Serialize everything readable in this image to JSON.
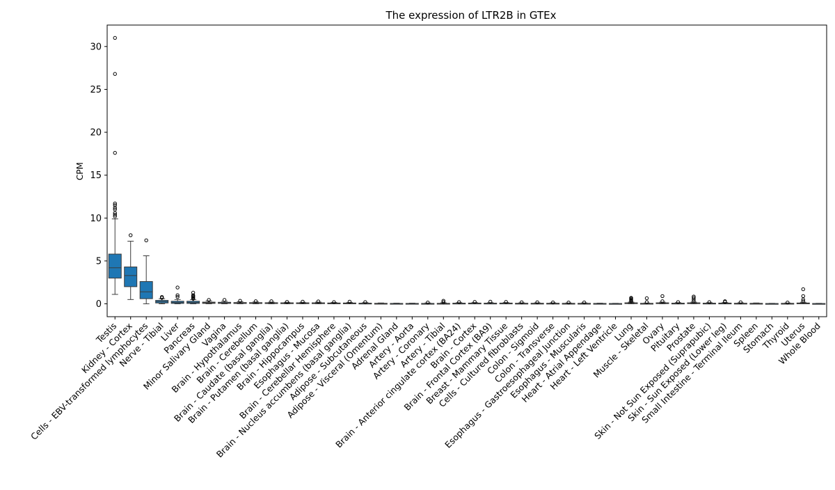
{
  "chart_data": {
    "type": "box",
    "title": "The expression of LTR2B in GTEx",
    "xlabel": "",
    "ylabel": "CPM",
    "ylim": [
      -1.5,
      32.5
    ],
    "yticks": [
      0,
      5,
      10,
      15,
      20,
      25,
      30
    ],
    "grid": false,
    "box_color": "#1f77b4",
    "categories": [
      "Testis",
      "Kidney - Cortex",
      "Cells - EBV-transformed lymphocytes",
      "Nerve - Tibial",
      "Liver",
      "Pancreas",
      "Minor Salivary Gland",
      "Vagina",
      "Brain - Hypothalamus",
      "Brain - Cerebellum",
      "Brain - Caudate (basal ganglia)",
      "Brain - Putamen (basal ganglia)",
      "Brain - Hippocampus",
      "Esophagus - Mucosa",
      "Brain - Cerebellar Hemisphere",
      "Brain - Nucleus accumbens (basal ganglia)",
      "Adipose - Subcutaneous",
      "Adipose - Visceral (Omentum)",
      "Adrenal Gland",
      "Artery - Aorta",
      "Artery - Coronary",
      "Artery - Tibial",
      "Brain - Anterior cingulate cortex (BA24)",
      "Brain - Cortex",
      "Brain - Frontal Cortex (BA9)",
      "Breast - Mammary Tissue",
      "Cells - Cultured fibroblasts",
      "Colon - Sigmoid",
      "Colon - Transverse",
      "Esophagus - Gastroesophageal Junction",
      "Esophagus - Muscularis",
      "Heart - Atrial Appendage",
      "Heart - Left Ventricle",
      "Lung",
      "Muscle - Skeletal",
      "Ovary",
      "Pituitary",
      "Prostate",
      "Skin - Not Sun Exposed (Suprapubic)",
      "Skin - Sun Exposed (Lower leg)",
      "Small Intestine - Terminal Ileum",
      "Spleen",
      "Stomach",
      "Thyroid",
      "Uterus",
      "Whole Blood"
    ],
    "boxes": [
      {
        "q1": 3.0,
        "median": 4.2,
        "q3": 5.8,
        "whisker_low": 1.1,
        "whisker_high": 9.9,
        "outliers": [
          10.2,
          10.4,
          10.6,
          11.0,
          11.2,
          11.5,
          11.7,
          17.6,
          26.8,
          31.0
        ]
      },
      {
        "q1": 2.0,
        "median": 3.3,
        "q3": 4.3,
        "whisker_low": 0.5,
        "whisker_high": 7.3,
        "outliers": [
          8.0
        ]
      },
      {
        "q1": 0.6,
        "median": 1.4,
        "q3": 2.6,
        "whisker_low": 0.0,
        "whisker_high": 5.6,
        "outliers": [
          7.4
        ]
      },
      {
        "q1": 0.1,
        "median": 0.25,
        "q3": 0.4,
        "whisker_low": 0.0,
        "whisker_high": 0.6,
        "outliers": [
          0.7,
          0.8
        ]
      },
      {
        "q1": 0.05,
        "median": 0.15,
        "q3": 0.3,
        "whisker_low": 0.0,
        "whisker_high": 0.5,
        "outliers": [
          0.8,
          1.0,
          1.9
        ]
      },
      {
        "q1": 0.05,
        "median": 0.15,
        "q3": 0.3,
        "whisker_low": 0.0,
        "whisker_high": 0.5,
        "outliers": [
          0.6,
          0.7,
          0.8,
          0.9,
          1.0,
          1.3
        ]
      },
      {
        "q1": 0.05,
        "median": 0.12,
        "q3": 0.2,
        "whisker_low": 0.0,
        "whisker_high": 0.35,
        "outliers": [
          0.45
        ]
      },
      {
        "q1": 0.05,
        "median": 0.1,
        "q3": 0.18,
        "whisker_low": 0.0,
        "whisker_high": 0.3,
        "outliers": [
          0.45
        ]
      },
      {
        "q1": 0.04,
        "median": 0.1,
        "q3": 0.15,
        "whisker_low": 0.0,
        "whisker_high": 0.25,
        "outliers": [
          0.35
        ]
      },
      {
        "q1": 0.04,
        "median": 0.08,
        "q3": 0.14,
        "whisker_low": 0.0,
        "whisker_high": 0.22,
        "outliers": [
          0.3
        ]
      },
      {
        "q1": 0.04,
        "median": 0.08,
        "q3": 0.13,
        "whisker_low": 0.0,
        "whisker_high": 0.2,
        "outliers": [
          0.3
        ]
      },
      {
        "q1": 0.03,
        "median": 0.08,
        "q3": 0.12,
        "whisker_low": 0.0,
        "whisker_high": 0.18,
        "outliers": [
          0.22
        ]
      },
      {
        "q1": 0.03,
        "median": 0.07,
        "q3": 0.12,
        "whisker_low": 0.0,
        "whisker_high": 0.18,
        "outliers": [
          0.25
        ]
      },
      {
        "q1": 0.03,
        "median": 0.07,
        "q3": 0.12,
        "whisker_low": 0.0,
        "whisker_high": 0.2,
        "outliers": [
          0.28
        ]
      },
      {
        "q1": 0.03,
        "median": 0.06,
        "q3": 0.1,
        "whisker_low": 0.0,
        "whisker_high": 0.16,
        "outliers": [
          0.2
        ]
      },
      {
        "q1": 0.03,
        "median": 0.06,
        "q3": 0.1,
        "whisker_low": 0.0,
        "whisker_high": 0.16,
        "outliers": [
          0.25
        ]
      },
      {
        "q1": 0.02,
        "median": 0.05,
        "q3": 0.08,
        "whisker_low": 0.0,
        "whisker_high": 0.14,
        "outliers": [
          0.2
        ]
      },
      {
        "q1": 0.01,
        "median": 0.03,
        "q3": 0.06,
        "whisker_low": 0.0,
        "whisker_high": 0.1,
        "outliers": []
      },
      {
        "q1": 0.01,
        "median": 0.03,
        "q3": 0.05,
        "whisker_low": 0.0,
        "whisker_high": 0.08,
        "outliers": []
      },
      {
        "q1": 0.01,
        "median": 0.03,
        "q3": 0.05,
        "whisker_low": 0.0,
        "whisker_high": 0.08,
        "outliers": []
      },
      {
        "q1": 0.01,
        "median": 0.03,
        "q3": 0.05,
        "whisker_low": 0.0,
        "whisker_high": 0.1,
        "outliers": [
          0.15
        ]
      },
      {
        "q1": 0.01,
        "median": 0.03,
        "q3": 0.06,
        "whisker_low": 0.0,
        "whisker_high": 0.12,
        "outliers": [
          0.2,
          0.35
        ]
      },
      {
        "q1": 0.02,
        "median": 0.05,
        "q3": 0.08,
        "whisker_low": 0.0,
        "whisker_high": 0.14,
        "outliers": [
          0.2
        ]
      },
      {
        "q1": 0.02,
        "median": 0.05,
        "q3": 0.09,
        "whisker_low": 0.0,
        "whisker_high": 0.15,
        "outliers": [
          0.22
        ]
      },
      {
        "q1": 0.02,
        "median": 0.05,
        "q3": 0.08,
        "whisker_low": 0.0,
        "whisker_high": 0.14,
        "outliers": [
          0.25
        ]
      },
      {
        "q1": 0.02,
        "median": 0.05,
        "q3": 0.09,
        "whisker_low": 0.0,
        "whisker_high": 0.15,
        "outliers": [
          0.22
        ]
      },
      {
        "q1": 0.01,
        "median": 0.04,
        "q3": 0.07,
        "whisker_low": 0.0,
        "whisker_high": 0.12,
        "outliers": [
          0.18
        ]
      },
      {
        "q1": 0.01,
        "median": 0.04,
        "q3": 0.07,
        "whisker_low": 0.0,
        "whisker_high": 0.12,
        "outliers": [
          0.18
        ]
      },
      {
        "q1": 0.01,
        "median": 0.04,
        "q3": 0.07,
        "whisker_low": 0.0,
        "whisker_high": 0.12,
        "outliers": [
          0.16
        ]
      },
      {
        "q1": 0.01,
        "median": 0.03,
        "q3": 0.06,
        "whisker_low": 0.0,
        "whisker_high": 0.1,
        "outliers": [
          0.15
        ]
      },
      {
        "q1": 0.01,
        "median": 0.03,
        "q3": 0.06,
        "whisker_low": 0.0,
        "whisker_high": 0.11,
        "outliers": [
          0.16
        ]
      },
      {
        "q1": 0.01,
        "median": 0.03,
        "q3": 0.05,
        "whisker_low": 0.0,
        "whisker_high": 0.08,
        "outliers": []
      },
      {
        "q1": 0.01,
        "median": 0.02,
        "q3": 0.04,
        "whisker_low": 0.0,
        "whisker_high": 0.06,
        "outliers": []
      },
      {
        "q1": 0.03,
        "median": 0.07,
        "q3": 0.12,
        "whisker_low": 0.0,
        "whisker_high": 0.2,
        "outliers": [
          0.3,
          0.4,
          0.5,
          0.6,
          0.7
        ]
      },
      {
        "q1": 0.01,
        "median": 0.03,
        "q3": 0.06,
        "whisker_low": 0.0,
        "whisker_high": 0.1,
        "outliers": [
          0.2,
          0.65
        ]
      },
      {
        "q1": 0.03,
        "median": 0.07,
        "q3": 0.12,
        "whisker_low": 0.0,
        "whisker_high": 0.2,
        "outliers": [
          0.3,
          0.9
        ]
      },
      {
        "q1": 0.02,
        "median": 0.05,
        "q3": 0.08,
        "whisker_low": 0.0,
        "whisker_high": 0.14,
        "outliers": [
          0.2
        ]
      },
      {
        "q1": 0.03,
        "median": 0.07,
        "q3": 0.12,
        "whisker_low": 0.0,
        "whisker_high": 0.2,
        "outliers": [
          0.3,
          0.5,
          0.7,
          0.85
        ]
      },
      {
        "q1": 0.02,
        "median": 0.05,
        "q3": 0.08,
        "whisker_low": 0.0,
        "whisker_high": 0.14,
        "outliers": [
          0.2
        ]
      },
      {
        "q1": 0.02,
        "median": 0.05,
        "q3": 0.09,
        "whisker_low": 0.0,
        "whisker_high": 0.15,
        "outliers": [
          0.22,
          0.3
        ]
      },
      {
        "q1": 0.02,
        "median": 0.04,
        "q3": 0.07,
        "whisker_low": 0.0,
        "whisker_high": 0.12,
        "outliers": [
          0.18
        ]
      },
      {
        "q1": 0.01,
        "median": 0.03,
        "q3": 0.06,
        "whisker_low": 0.0,
        "whisker_high": 0.1,
        "outliers": []
      },
      {
        "q1": 0.01,
        "median": 0.02,
        "q3": 0.04,
        "whisker_low": 0.0,
        "whisker_high": 0.06,
        "outliers": []
      },
      {
        "q1": 0.01,
        "median": 0.03,
        "q3": 0.06,
        "whisker_low": 0.0,
        "whisker_high": 0.1,
        "outliers": [
          0.15
        ]
      },
      {
        "q1": 0.02,
        "median": 0.05,
        "q3": 0.1,
        "whisker_low": 0.0,
        "whisker_high": 0.18,
        "outliers": [
          0.3,
          0.5,
          0.9,
          1.7
        ]
      },
      {
        "q1": 0.01,
        "median": 0.02,
        "q3": 0.04,
        "whisker_low": 0.0,
        "whisker_high": 0.06,
        "outliers": []
      }
    ]
  }
}
